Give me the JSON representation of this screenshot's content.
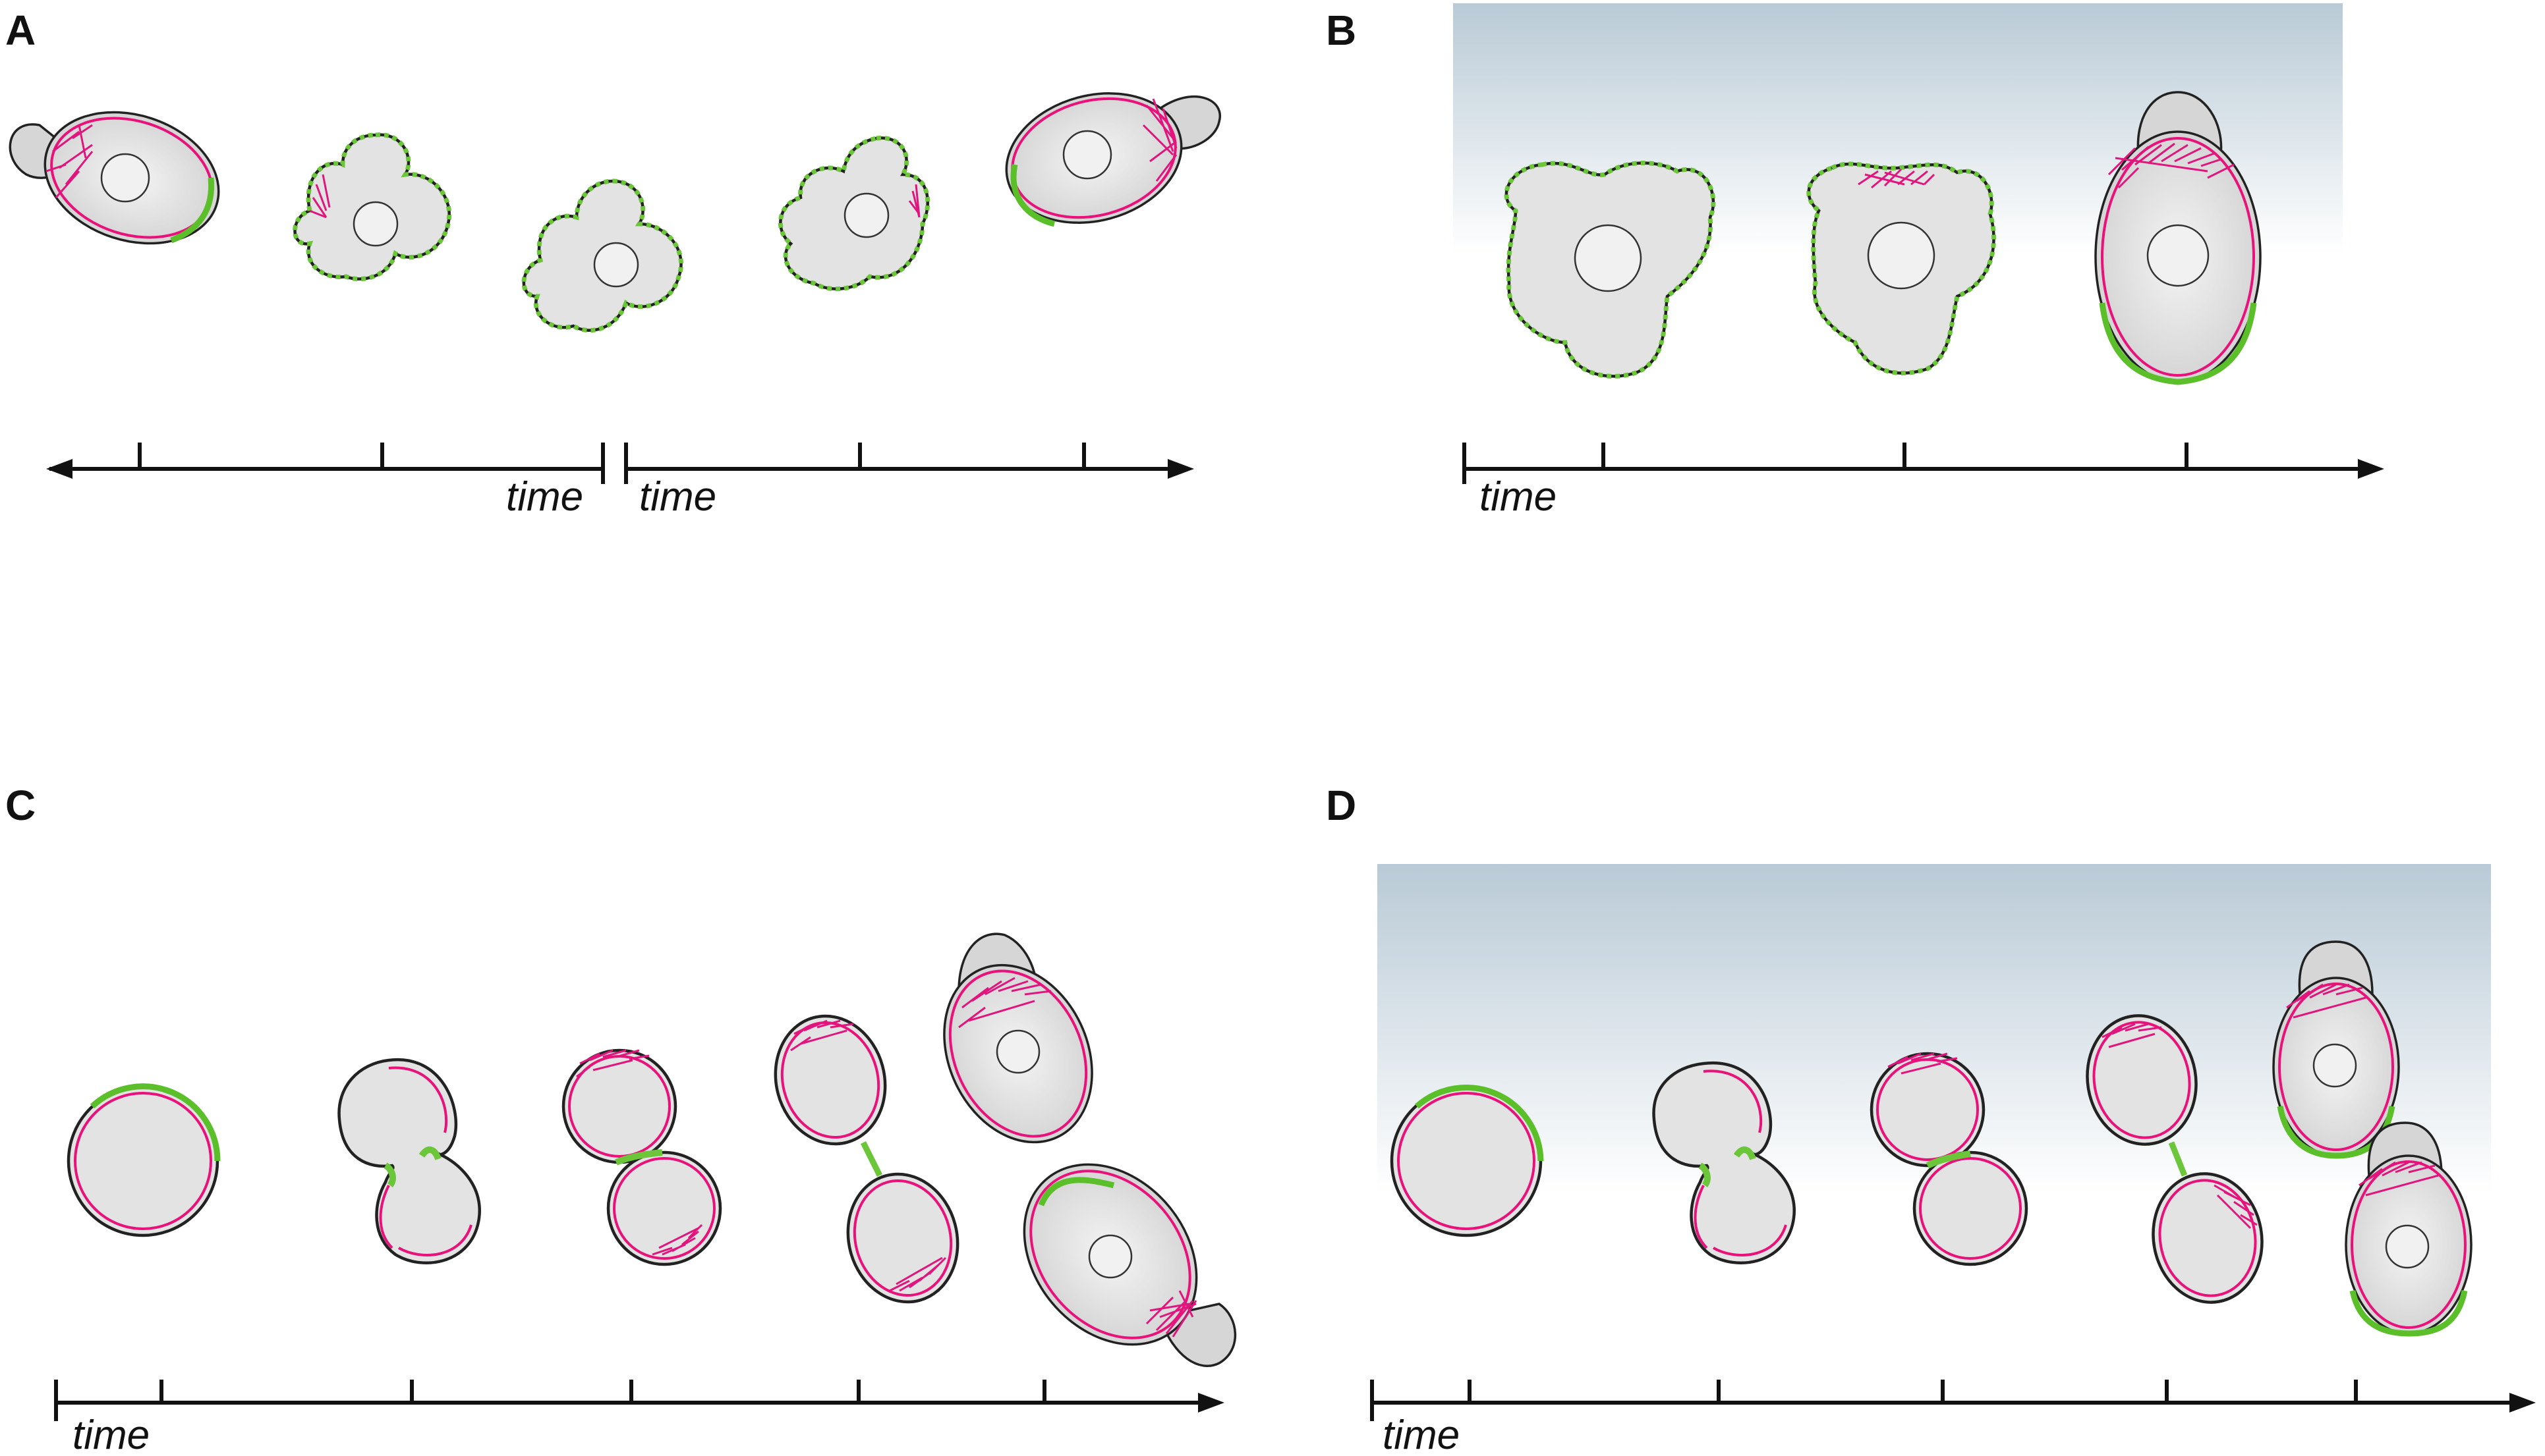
{
  "panels": [
    {
      "letter": "A",
      "axis_labels": [
        "time",
        "time"
      ]
    },
    {
      "letter": "B",
      "axis_labels": [
        "time"
      ]
    },
    {
      "letter": "C",
      "axis_labels": [
        "time"
      ]
    },
    {
      "letter": "D",
      "axis_labels": [
        "time"
      ]
    }
  ],
  "colors": {
    "membrane": "#e8127a",
    "actin_cap": "#e0157e",
    "cell_wall": "#5bbf2a",
    "cytoplasm": "#e3e3e3",
    "gradient_top": "#b9cad6",
    "outline": "#222222"
  }
}
